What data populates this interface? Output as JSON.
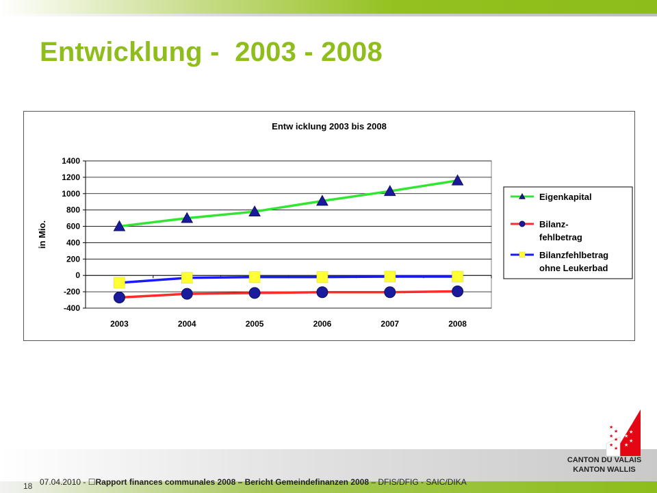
{
  "slide": {
    "title": "Entwicklung -  2003 - 2008",
    "page_number": "18",
    "footer_date": "07.04.2010",
    "footer_title": "Rapport finances communales 2008 – Bericht Gemeindefinanzen 2008",
    "footer_dept": "– DFIS/DFIG - SAIC/DIKA",
    "logo_line1": "CANTON DU VALAIS",
    "logo_line2": "KANTON WALLIS",
    "colors": {
      "accent": "#8fbd1c",
      "logo_red": "#e30613"
    }
  },
  "chart_data": {
    "type": "line",
    "title": "Entw icklung 2003 bis 2008",
    "ylabel": "in Mio.",
    "xlabel": "",
    "categories": [
      "2003",
      "2004",
      "2005",
      "2006",
      "2007",
      "2008"
    ],
    "ylim": [
      -400,
      1400
    ],
    "yticks": [
      -400,
      -200,
      0,
      200,
      400,
      600,
      800,
      1000,
      1200,
      1400
    ],
    "grid": true,
    "legend_position": "right",
    "series": [
      {
        "name": "Eigenkapital",
        "label_lines": [
          "Eigenkapital"
        ],
        "color": "#33e533",
        "marker": "triangle",
        "marker_color": "#1a1a9c",
        "values": [
          600,
          700,
          780,
          910,
          1030,
          1160
        ]
      },
      {
        "name": "Bilanzfehlbetrag",
        "label_lines": [
          "Bilanz-",
          "fehlbetrag"
        ],
        "color": "#ff2a2a",
        "marker": "circle",
        "marker_color": "#1a1a9c",
        "values": [
          -270,
          -225,
          -215,
          -205,
          -205,
          -195
        ]
      },
      {
        "name": "Bilanzfehlbetrag ohne Leukerbad",
        "label_lines": [
          "Bilanzfehlbetrag",
          "ohne Leukerbad"
        ],
        "color": "#1a1aff",
        "marker": "square",
        "marker_color": "#ffff33",
        "values": [
          -90,
          -30,
          -20,
          -20,
          -15,
          -15
        ]
      }
    ]
  }
}
